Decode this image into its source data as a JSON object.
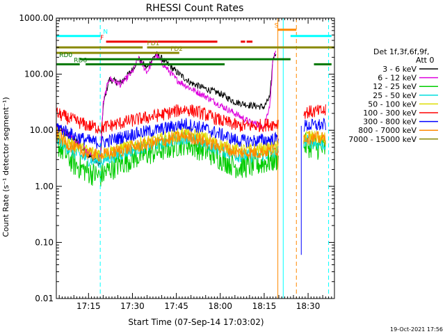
{
  "chart_data": {
    "type": "line",
    "title": "RHESSI Count Rates",
    "xlabel": "Start Time (07-Sep-14 17:03:02)",
    "ylabel": "Count Rate (s⁻¹ detector segment⁻¹)",
    "y_scale": "log",
    "ylim": [
      0.01,
      1000
    ],
    "xlim": [
      "17:04:00",
      "18:39:00"
    ],
    "y_ticks": [
      "0.01",
      "0.10",
      "1.00",
      "10.00",
      "100.00",
      "1000.00"
    ],
    "x_ticks": [
      "17:15",
      "17:30",
      "17:45",
      "18:00",
      "18:15",
      "18:30"
    ],
    "timestamp": "19-Oct-2021 17:56",
    "legend": {
      "placement": "right",
      "header": [
        "Det 1f,3f,6f,9f,",
        "Att 0"
      ]
    },
    "series": [
      {
        "name": "3 - 6 keV",
        "color": "#000000",
        "points": [
          [
            "17:04",
            12
          ],
          [
            "17:10",
            7
          ],
          [
            "17:15",
            3.5
          ],
          [
            "17:19",
            2.5
          ],
          [
            "17:20",
            28
          ],
          [
            "17:22",
            80
          ],
          [
            "17:26",
            70
          ],
          [
            "17:30",
            120
          ],
          [
            "17:32",
            190
          ],
          [
            "17:35",
            130
          ],
          [
            "17:38",
            230
          ],
          [
            "17:40",
            190
          ],
          [
            "17:45",
            110
          ],
          [
            "17:50",
            70
          ],
          [
            "17:55",
            55
          ],
          [
            "18:00",
            45
          ],
          [
            "18:05",
            32
          ],
          [
            "18:10",
            28
          ],
          [
            "18:15",
            26
          ],
          [
            "18:17",
            40
          ],
          [
            "18:18",
            190
          ],
          [
            "18:19",
            250
          ]
        ]
      },
      {
        "name": "6 - 12 keV",
        "color": "#dd00dd",
        "points": [
          [
            "17:04",
            12
          ],
          [
            "17:10",
            7
          ],
          [
            "17:15",
            4
          ],
          [
            "17:19",
            3.5
          ],
          [
            "17:20",
            30
          ],
          [
            "17:22",
            85
          ],
          [
            "17:26",
            65
          ],
          [
            "17:30",
            110
          ],
          [
            "17:32",
            190
          ],
          [
            "17:35",
            110
          ],
          [
            "17:38",
            220
          ],
          [
            "17:40",
            160
          ],
          [
            "17:45",
            80
          ],
          [
            "17:50",
            55
          ],
          [
            "17:55",
            40
          ],
          [
            "18:00",
            28
          ],
          [
            "18:05",
            20
          ],
          [
            "18:10",
            14
          ],
          [
            "18:15",
            12
          ],
          [
            "18:17",
            30
          ],
          [
            "18:18",
            180
          ],
          [
            "18:19",
            230
          ]
        ]
      },
      {
        "name": "12 - 25 keV",
        "color": "#00cc00",
        "points": [
          [
            "17:04",
            6
          ],
          [
            "17:10",
            2.5
          ],
          [
            "17:15",
            1.8
          ],
          [
            "17:19",
            1.5
          ],
          [
            "17:22",
            2
          ],
          [
            "17:30",
            3.2
          ],
          [
            "17:40",
            4.5
          ],
          [
            "17:48",
            6
          ],
          [
            "17:54",
            4.5
          ],
          [
            "18:00",
            3.2
          ],
          [
            "18:06",
            2.2
          ],
          [
            "18:12",
            2.4
          ],
          [
            "18:19",
            3
          ],
          [
            "18:29",
            5.5
          ],
          [
            "18:36",
            4.5
          ]
        ]
      },
      {
        "name": "25 - 50 keV",
        "color": "#00dddd",
        "points": [
          [
            "17:04",
            7
          ],
          [
            "17:10",
            4
          ],
          [
            "17:15",
            3
          ],
          [
            "17:19",
            2.8
          ],
          [
            "17:22",
            3.2
          ],
          [
            "17:30",
            4.5
          ],
          [
            "17:40",
            6
          ],
          [
            "17:48",
            7.5
          ],
          [
            "17:54",
            6
          ],
          [
            "18:00",
            4.5
          ],
          [
            "18:06",
            3.5
          ],
          [
            "18:12",
            3.5
          ],
          [
            "18:19",
            4
          ],
          [
            "18:29",
            6.5
          ],
          [
            "18:36",
            5.5
          ]
        ]
      },
      {
        "name": "50 - 100 keV",
        "color": "#dddd00",
        "points": [
          [
            "17:04",
            9
          ],
          [
            "17:10",
            5.5
          ],
          [
            "17:15",
            4.2
          ],
          [
            "17:19",
            3.8
          ],
          [
            "17:22",
            4.2
          ],
          [
            "17:30",
            5.5
          ],
          [
            "17:40",
            7
          ],
          [
            "17:48",
            9
          ],
          [
            "17:54",
            7.5
          ],
          [
            "18:00",
            5.5
          ],
          [
            "18:06",
            4.5
          ],
          [
            "18:12",
            4.5
          ],
          [
            "18:19",
            5
          ],
          [
            "18:29",
            8
          ],
          [
            "18:36",
            7
          ]
        ]
      },
      {
        "name": "100 - 300 keV",
        "color": "#ff0000",
        "points": [
          [
            "17:04",
            20
          ],
          [
            "17:10",
            15
          ],
          [
            "17:15",
            12
          ],
          [
            "17:19",
            11
          ],
          [
            "17:22",
            12
          ],
          [
            "17:30",
            15
          ],
          [
            "17:40",
            19
          ],
          [
            "17:48",
            24
          ],
          [
            "17:54",
            20
          ],
          [
            "18:00",
            15
          ],
          [
            "18:06",
            12
          ],
          [
            "18:12",
            12
          ],
          [
            "18:19",
            13
          ],
          [
            "18:29",
            21
          ],
          [
            "18:36",
            22
          ]
        ]
      },
      {
        "name": "300 - 800 keV",
        "color": "#0000ff",
        "points": [
          [
            "17:04",
            12
          ],
          [
            "17:10",
            8
          ],
          [
            "17:15",
            6.5
          ],
          [
            "17:19",
            6
          ],
          [
            "17:22",
            6.5
          ],
          [
            "17:30",
            8.5
          ],
          [
            "17:40",
            10.5
          ],
          [
            "17:48",
            13
          ],
          [
            "17:54",
            11
          ],
          [
            "18:00",
            8.5
          ],
          [
            "18:06",
            6.5
          ],
          [
            "18:12",
            6.5
          ],
          [
            "18:19",
            7
          ],
          [
            "18:29",
            12
          ],
          [
            "18:36",
            12.5
          ]
        ]
      },
      {
        "name": "800 - 7000 keV",
        "color": "#ff8800",
        "points": [
          [
            "17:04",
            8
          ],
          [
            "17:10",
            4.8
          ],
          [
            "17:15",
            3.8
          ],
          [
            "17:19",
            3.5
          ],
          [
            "17:22",
            3.8
          ],
          [
            "17:30",
            5
          ],
          [
            "17:40",
            6.3
          ],
          [
            "17:48",
            8
          ],
          [
            "17:54",
            6.5
          ],
          [
            "18:00",
            5
          ],
          [
            "18:06",
            4
          ],
          [
            "18:12",
            4
          ],
          [
            "18:19",
            4.5
          ],
          [
            "18:29",
            7.5
          ],
          [
            "18:36",
            7
          ]
        ]
      },
      {
        "name": "7000 - 15000 keV",
        "color": "#888800",
        "points": []
      }
    ],
    "annotations": {
      "bars": [
        {
          "label": "N",
          "color": "#00ffff",
          "y": 480,
          "label_at": "17:20",
          "segments": [
            [
              "17:04",
              "17:19"
            ],
            [
              "18:24",
              "18:38"
            ]
          ]
        },
        {
          "label": "F",
          "color": "#ee0000",
          "y": 380,
          "label_at": "17:19",
          "segments": [
            [
              "17:21",
              "17:59"
            ],
            [
              "18:07",
              "18:08:30"
            ],
            [
              "18:09",
              "18:11"
            ]
          ]
        },
        {
          "label": "FD1",
          "color": "#888800",
          "y": 300,
          "label_at": "17:35",
          "segments": [
            [
              "17:04",
              "17:33:30"
            ],
            [
              "17:35",
              "18:39"
            ]
          ]
        },
        {
          "label": "FD2",
          "color": "#888800",
          "y": 240,
          "label_at": "17:43",
          "segments": [
            [
              "17:04",
              "17:46"
            ]
          ]
        },
        {
          "label": "RD0",
          "color": "#007700",
          "y": 185,
          "label_at": "17:05",
          "segments": [
            [
              "17:12",
              "18:24"
            ]
          ]
        },
        {
          "label": "RD6",
          "color": "#007700",
          "y": 150,
          "label_at": "17:10",
          "segments": [
            [
              "17:04",
              "17:12"
            ],
            [
              "17:14",
              "18:01:30"
            ],
            [
              "18:32",
              "18:38"
            ]
          ]
        },
        {
          "label": "S",
          "color": "#ff8800",
          "y": 620,
          "label_at": "18:18:30",
          "segments": [
            [
              "18:19:30",
              "18:26"
            ]
          ]
        }
      ],
      "vlines": [
        {
          "time": "17:04:00",
          "color": "#00ffff",
          "style": "dashed"
        },
        {
          "time": "17:19:00",
          "color": "#00ffff",
          "style": "dashed"
        },
        {
          "time": "18:37:00",
          "color": "#00ffff",
          "style": "dashed"
        },
        {
          "time": "18:21:30",
          "color": "#00ffff",
          "style": "solid"
        },
        {
          "time": "18:19:40",
          "color": "#ff8800",
          "style": "solid"
        },
        {
          "time": "18:26:00",
          "color": "#ff8800",
          "style": "dashed"
        }
      ]
    }
  }
}
